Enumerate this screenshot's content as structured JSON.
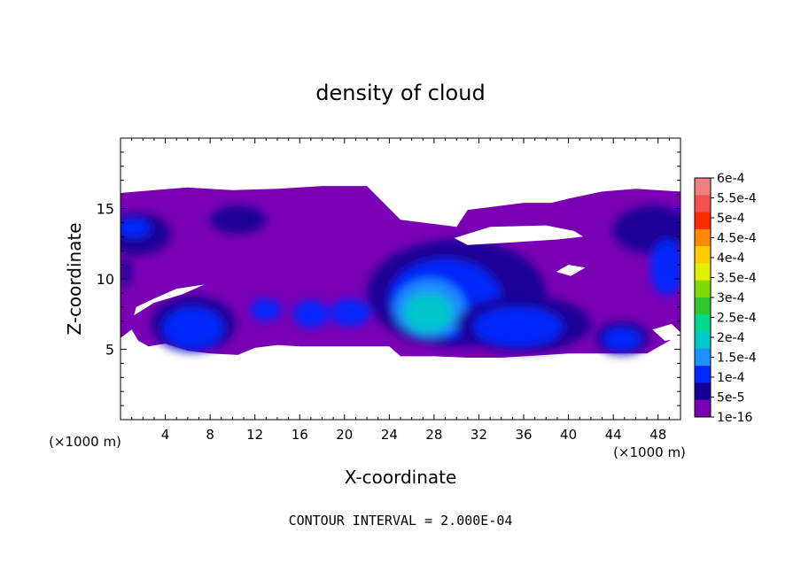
{
  "chart_data": {
    "type": "heatmap",
    "title": "density of cloud",
    "xlabel": "X-coordinate",
    "ylabel": "Z-coordinate",
    "x_unit_left": "(×1000 m)",
    "x_unit_right": "(×1000 m)",
    "xlim": [
      0,
      50
    ],
    "ylim": [
      0,
      20
    ],
    "x_ticks": [
      4,
      8,
      12,
      16,
      20,
      24,
      28,
      32,
      36,
      40,
      44,
      48
    ],
    "x_tick_labels": [
      "4",
      "8",
      "12",
      "16",
      "20",
      "24",
      "28",
      "32",
      "36",
      "40",
      "44",
      "48"
    ],
    "y_ticks": [
      5,
      10,
      15
    ],
    "y_tick_labels": [
      "5",
      "10",
      "15"
    ],
    "footer": "CONTOUR INTERVAL = 2.000E-04",
    "colorbar": {
      "labels": [
        "6e-4",
        "5.5e-4",
        "5e-4",
        "4.5e-4",
        "4e-4",
        "3.5e-4",
        "3e-4",
        "2.5e-4",
        "2e-4",
        "1.5e-4",
        "1e-4",
        "5e-5",
        "1e-16"
      ],
      "levels": [
        0.0006,
        0.00055,
        0.0005,
        0.00045,
        0.0004,
        0.00035,
        0.0003,
        0.00025,
        0.0002,
        0.00015,
        0.0001,
        5e-05,
        1e-16
      ],
      "colors": [
        "#f08080",
        "#f45050",
        "#ff2a00",
        "#ff8c00",
        "#ffcc00",
        "#e0f000",
        "#7cdc00",
        "#2ec82e",
        "#00d88c",
        "#00c8c8",
        "#1e90ff",
        "#0028ff",
        "#140096",
        "#7a00b4"
      ]
    },
    "cloud_layer": {
      "base": [
        [
          0,
          5.8
        ],
        [
          1,
          6.4
        ],
        [
          1.6,
          5.6
        ],
        [
          2.5,
          5.2
        ],
        [
          4,
          5.4
        ],
        [
          6,
          4.9
        ],
        [
          8,
          4.7
        ],
        [
          10.5,
          4.6
        ],
        [
          12,
          5.1
        ],
        [
          14,
          5.3
        ],
        [
          16,
          5.2
        ],
        [
          20,
          5.2
        ],
        [
          24,
          5.2
        ],
        [
          25,
          4.5
        ],
        [
          28,
          4.5
        ],
        [
          31,
          4.4
        ],
        [
          34,
          4.4
        ],
        [
          40,
          4.7
        ],
        [
          44,
          4.7
        ],
        [
          47,
          4.7
        ],
        [
          49,
          5.6
        ],
        [
          50,
          6.2
        ]
      ],
      "top": [
        [
          50,
          16.2
        ],
        [
          46,
          16.4
        ],
        [
          43,
          16.2
        ],
        [
          40,
          15.7
        ],
        [
          38.5,
          15.4
        ],
        [
          36,
          15.4
        ],
        [
          31,
          14.9
        ],
        [
          30,
          13.7
        ],
        [
          25,
          14.2
        ],
        [
          22,
          16.6
        ],
        [
          18,
          16.6
        ],
        [
          14,
          16.4
        ],
        [
          10,
          16.3
        ],
        [
          6,
          16.5
        ],
        [
          3,
          16.3
        ],
        [
          0,
          16.1
        ]
      ],
      "clear_regions": [
        [
          [
            1.2,
            7.4
          ],
          [
            3,
            8.3
          ],
          [
            5.5,
            8.9
          ],
          [
            7.5,
            9.6
          ],
          [
            5,
            9.3
          ],
          [
            3,
            8.6
          ],
          [
            1.4,
            8.0
          ]
        ],
        [
          [
            29.8,
            12.9
          ],
          [
            33,
            13.7
          ],
          [
            38,
            13.8
          ],
          [
            40.5,
            13.4
          ],
          [
            41.3,
            13.0
          ],
          [
            39,
            12.8
          ],
          [
            35,
            12.6
          ],
          [
            31,
            12.4
          ]
        ],
        [
          [
            38.9,
            10.5
          ],
          [
            40,
            11.0
          ],
          [
            41.5,
            10.8
          ],
          [
            40.2,
            10.2
          ]
        ],
        [
          [
            47.5,
            6.4
          ],
          [
            49.2,
            6.8
          ],
          [
            50,
            6.2
          ],
          [
            50,
            5.8
          ],
          [
            48.6,
            5.6
          ]
        ]
      ]
    },
    "features": [
      {
        "x": 0.5,
        "z": 10.5,
        "rx": 0.5,
        "rz": 1.0,
        "level": 2
      },
      {
        "x": 1.5,
        "z": 13.2,
        "rx": 3.0,
        "rz": 1.5,
        "level": 2
      },
      {
        "x": 1.2,
        "z": 13.6,
        "rx": 1.5,
        "rz": 0.7,
        "level": 3
      },
      {
        "x": 10.5,
        "z": 14.2,
        "rx": 2.5,
        "rz": 1.0,
        "level": 2
      },
      {
        "x": 47.5,
        "z": 13.5,
        "rx": 3.5,
        "rz": 1.7,
        "level": 2
      },
      {
        "x": 48.8,
        "z": 10.8,
        "rx": 1.5,
        "rz": 2.0,
        "level": 3
      },
      {
        "x": 6.5,
        "z": 6.8,
        "rx": 3.8,
        "rz": 2.0,
        "level": 2
      },
      {
        "x": 6.5,
        "z": 6.5,
        "rx": 2.7,
        "rz": 1.5,
        "level": 3
      },
      {
        "x": 13,
        "z": 7.8,
        "rx": 1.4,
        "rz": 0.8,
        "level": 3
      },
      {
        "x": 17,
        "z": 7.5,
        "rx": 1.6,
        "rz": 1.0,
        "level": 3
      },
      {
        "x": 20.5,
        "z": 7.6,
        "rx": 1.8,
        "rz": 1.0,
        "level": 3
      },
      {
        "x": 30,
        "z": 9.0,
        "rx": 8.0,
        "rz": 3.8,
        "level": 2
      },
      {
        "x": 29,
        "z": 8.6,
        "rx": 5.0,
        "rz": 2.8,
        "level": 3
      },
      {
        "x": 27.6,
        "z": 7.9,
        "rx": 3.2,
        "rz": 2.1,
        "level": 4
      },
      {
        "x": 27.5,
        "z": 7.6,
        "rx": 2.2,
        "rz": 1.4,
        "level": 5
      },
      {
        "x": 36,
        "z": 6.8,
        "rx": 6.0,
        "rz": 2.0,
        "level": 2
      },
      {
        "x": 35.5,
        "z": 6.6,
        "rx": 4.0,
        "rz": 1.4,
        "level": 3
      },
      {
        "x": 44.8,
        "z": 5.8,
        "rx": 2.4,
        "rz": 1.2,
        "level": 2
      },
      {
        "x": 44.8,
        "z": 5.7,
        "rx": 1.7,
        "rz": 0.8,
        "level": 3
      }
    ]
  }
}
